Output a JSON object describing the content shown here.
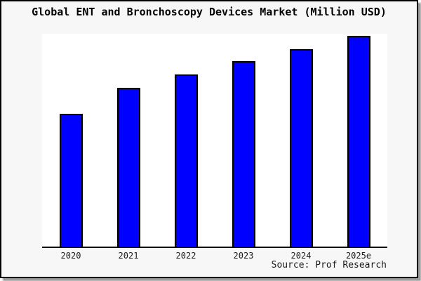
{
  "panel": {
    "source_label": "Source: Prof Research"
  },
  "chart_data": {
    "type": "bar",
    "title": "Global ENT and Bronchoscopy Devices Market (Million USD)",
    "categories": [
      "2020",
      "2021",
      "2022",
      "2023",
      "2024",
      "2025e"
    ],
    "values": [
      63,
      75.3,
      81.7,
      88,
      93.8,
      100
    ],
    "values_note": "no y-axis scale or data labels shown; values are relative bar heights with 2025e = 100",
    "unit": "Million USD",
    "xlabel": "",
    "ylabel": "",
    "ylim": [
      0,
      100
    ],
    "grid": false,
    "legend": null,
    "bar_color": "#0000ff",
    "bar_edge_color": "#000000",
    "plot_bg": "#ffffff",
    "panel_bg": "#f7f7f7"
  }
}
